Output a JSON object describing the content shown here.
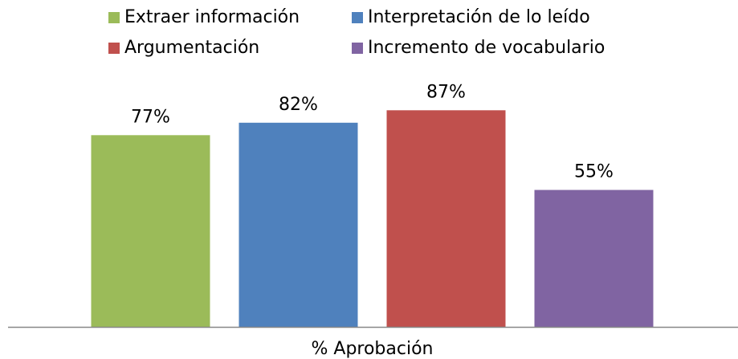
{
  "chart_data": {
    "type": "bar",
    "categories": [
      "% Aprobación"
    ],
    "series": [
      {
        "name": "Extraer información",
        "color": "#9bbb59",
        "values": [
          77
        ],
        "value_labels": [
          "77%"
        ]
      },
      {
        "name": "Interpretación de lo leído",
        "color": "#4f81bd",
        "values": [
          82
        ],
        "value_labels": [
          "82%"
        ]
      },
      {
        "name": "Argumentación",
        "color": "#c0504d",
        "values": [
          87
        ],
        "value_labels": [
          "87%"
        ]
      },
      {
        "name": "Incremento de vocabulario",
        "color": "#8064a2",
        "values": [
          55
        ],
        "value_labels": [
          "55%"
        ]
      }
    ],
    "ylim": [
      0,
      100
    ],
    "legend": "top"
  }
}
